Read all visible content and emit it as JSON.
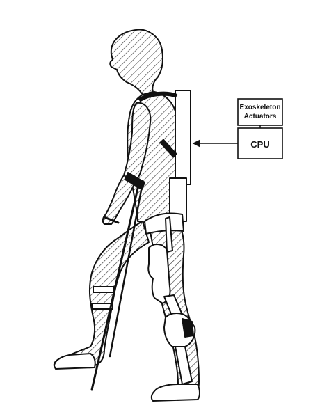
{
  "diagram": {
    "labels": {
      "actuators_line1": "Exoskeleton",
      "actuators_line2": "Actuators",
      "cpu": "CPU"
    },
    "colors": {
      "ink": "#111111",
      "hatch": "#3a3a3a",
      "background": "#ffffff"
    }
  }
}
